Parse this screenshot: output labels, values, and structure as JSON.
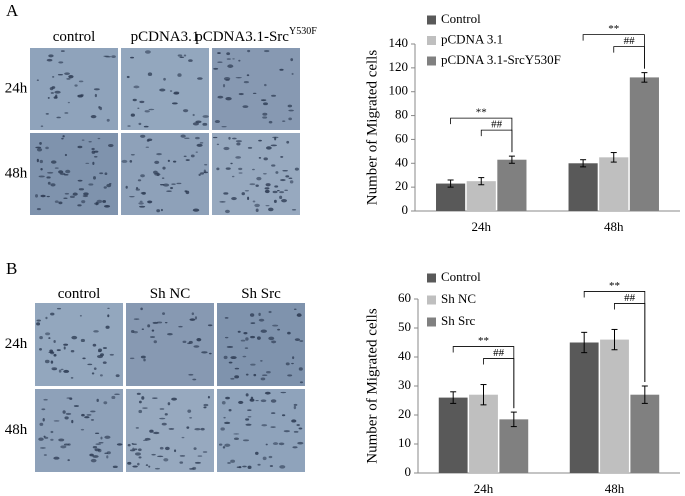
{
  "figure": {
    "panels": [
      {
        "label": "A",
        "columns": [
          "control",
          "pCDNA3.1",
          "pCDNA3.1-Src"
        ],
        "column_superscript": "Y530F",
        "rows": [
          "24h",
          "48h"
        ]
      },
      {
        "label": "B",
        "columns": [
          "control",
          "Sh NC",
          "Sh Src"
        ],
        "rows": [
          "24h",
          "48h"
        ]
      }
    ]
  },
  "chart_data": [
    {
      "type": "bar",
      "ylabel": "Number of Migrated cells",
      "categories": [
        "24h",
        "48h"
      ],
      "series": [
        {
          "name": "Control",
          "color": "#595959",
          "values": [
            23,
            40
          ],
          "errors": [
            3,
            3
          ]
        },
        {
          "name": "pCDNA 3.1",
          "color": "#bfbfbf",
          "values": [
            25,
            45
          ],
          "errors": [
            3,
            4
          ]
        },
        {
          "name": "pCDNA 3.1-SrcY530F",
          "color": "#808080",
          "values": [
            43,
            112
          ],
          "errors": [
            3,
            4
          ]
        }
      ],
      "significance": [
        [
          "**",
          "##"
        ],
        [
          "**",
          "##"
        ]
      ],
      "ylim": [
        0,
        140
      ],
      "yticks": [
        0,
        20,
        40,
        60,
        80,
        100,
        120,
        140
      ],
      "legend": "upper left"
    },
    {
      "type": "bar",
      "ylabel": "Number of Migrated cells",
      "categories": [
        "24h",
        "48h"
      ],
      "series": [
        {
          "name": "Control",
          "color": "#595959",
          "values": [
            26,
            45
          ],
          "errors": [
            2,
            3.5
          ]
        },
        {
          "name": "Sh NC",
          "color": "#bfbfbf",
          "values": [
            27,
            46
          ],
          "errors": [
            3.5,
            3.5
          ]
        },
        {
          "name": "Sh Src",
          "color": "#808080",
          "values": [
            18.5,
            27
          ],
          "errors": [
            2.5,
            3
          ]
        }
      ],
      "significance": [
        [
          "**",
          "##"
        ],
        [
          "**",
          "##"
        ]
      ],
      "ylim": [
        0,
        60
      ],
      "yticks": [
        0,
        10,
        20,
        30,
        40,
        50,
        60
      ],
      "legend": "upper left"
    }
  ]
}
